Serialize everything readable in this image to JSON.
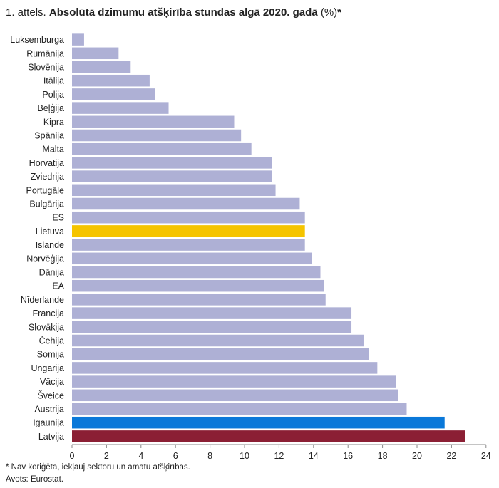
{
  "title": {
    "prefix": "1. attēls.",
    "main": "Absolūtā dzimumu atšķirība stundas algā 2020. gadā",
    "unit": "(%)",
    "marker": "*"
  },
  "footnotes": {
    "note": "* Nav koriģēta, iekļauj sektoru un amatu atšķirības.",
    "source": "Avots: Eurostat."
  },
  "colors": {
    "default": "#aeb0d5",
    "lithuania": "#f5c400",
    "estonia": "#0a78d9",
    "latvia": "#8b1f34",
    "axis": "#888888"
  },
  "chart_data": {
    "type": "bar",
    "orientation": "horizontal",
    "categories": [
      "Luksemburga",
      "Rumānija",
      "Slovēnija",
      "Itālija",
      "Polija",
      "Beļģija",
      "Kipra",
      "Spānija",
      "Malta",
      "Horvātija",
      "Zviedrija",
      "Portugāle",
      "Bulgārija",
      "ES",
      "Lietuva",
      "Islande",
      "Norvēģija",
      "Dānija",
      "EA",
      "Nīderlande",
      "Francija",
      "Slovākija",
      "Čehija",
      "Somija",
      "Ungārija",
      "Vācija",
      "Šveice",
      "Austrija",
      "Igaunija",
      "Latvija"
    ],
    "values": [
      0.7,
      2.7,
      3.4,
      4.5,
      4.8,
      5.6,
      9.4,
      9.8,
      10.4,
      11.6,
      11.6,
      11.8,
      13.2,
      13.5,
      13.5,
      13.5,
      13.9,
      14.4,
      14.6,
      14.7,
      16.2,
      16.2,
      16.9,
      17.2,
      17.7,
      18.8,
      18.9,
      19.4,
      21.6,
      22.8
    ],
    "highlight": {
      "Lietuva": "lithuania",
      "Igaunija": "estonia",
      "Latvija": "latvia"
    },
    "xlim": [
      0,
      24
    ],
    "xticks": [
      0,
      2,
      4,
      6,
      8,
      10,
      12,
      14,
      16,
      18,
      20,
      22,
      24
    ],
    "xlabel": "",
    "ylabel": "",
    "grid": false
  }
}
